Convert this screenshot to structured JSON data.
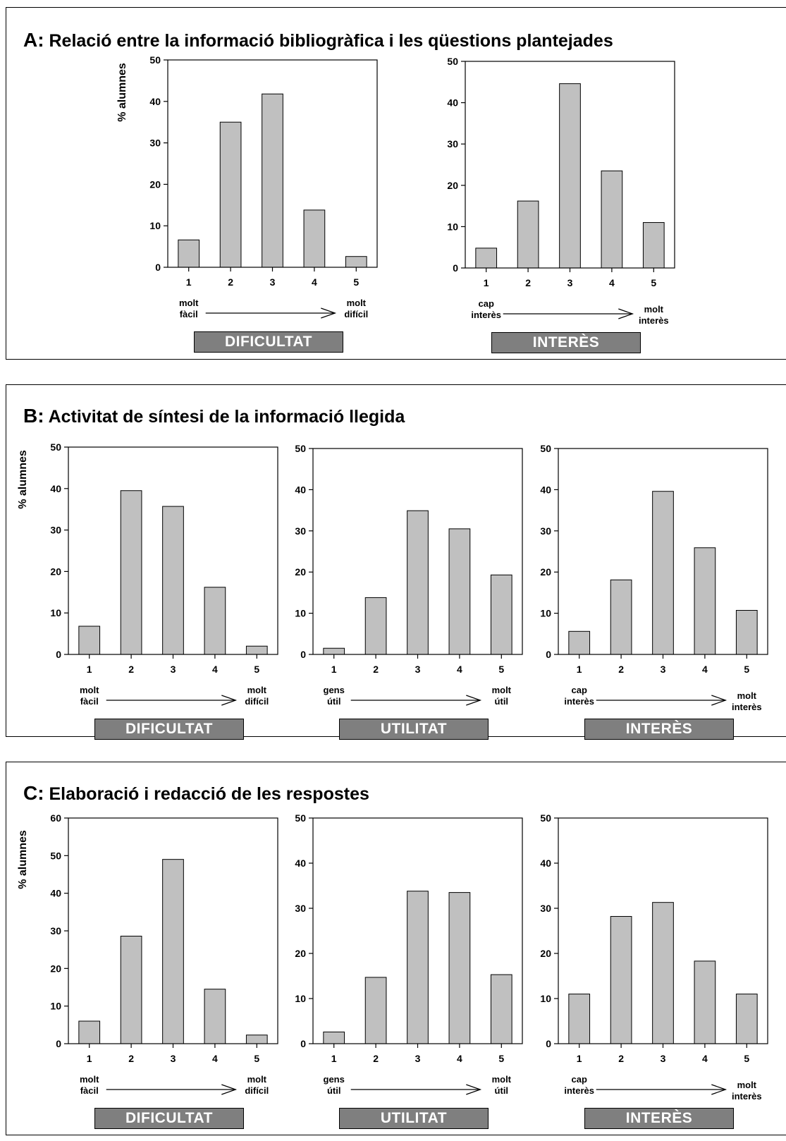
{
  "panels": [
    {
      "id": "A",
      "letter": "A:",
      "title": "Relació entre la informació bibliogràfica i les qüestions plantejades",
      "charts": [
        {
          "chart_data": {
            "type": "bar",
            "categories": [
              "1",
              "2",
              "3",
              "4",
              "5"
            ],
            "values": [
              6.6,
              35,
              41.8,
              13.8,
              2.6
            ],
            "ylim": [
              0,
              50
            ],
            "yticks": [
              0,
              10,
              20,
              30,
              40,
              50
            ],
            "ylabel": "% alumnes",
            "scale_left": "molt\nfàcil",
            "scale_right": "molt\ndifícil",
            "category": "DIFICULTAT"
          }
        },
        {
          "chart_data": {
            "type": "bar",
            "categories": [
              "1",
              "2",
              "3",
              "4",
              "5"
            ],
            "values": [
              4.8,
              16.2,
              44.6,
              23.5,
              11
            ],
            "ylim": [
              0,
              50
            ],
            "yticks": [
              0,
              10,
              20,
              30,
              40,
              50
            ],
            "ylabel": "",
            "scale_left": "cap\ninterès",
            "scale_right": "molt\ninterès",
            "category": "INTERÈS"
          }
        }
      ]
    },
    {
      "id": "B",
      "letter": "B:",
      "title": "Activitat de síntesi de la informació llegida",
      "charts": [
        {
          "chart_data": {
            "type": "bar",
            "categories": [
              "1",
              "2",
              "3",
              "4",
              "5"
            ],
            "values": [
              6.8,
              39.5,
              35.7,
              16.2,
              2
            ],
            "ylim": [
              0,
              50
            ],
            "yticks": [
              0,
              10,
              20,
              30,
              40,
              50
            ],
            "ylabel": "% alumnes",
            "scale_left": "molt\nfàcil",
            "scale_right": "molt\ndifícil",
            "category": "DIFICULTAT"
          }
        },
        {
          "chart_data": {
            "type": "bar",
            "categories": [
              "1",
              "2",
              "3",
              "4",
              "5"
            ],
            "values": [
              1.5,
              13.8,
              34.9,
              30.5,
              19.3
            ],
            "ylim": [
              0,
              50
            ],
            "yticks": [
              0,
              10,
              20,
              30,
              40,
              50
            ],
            "ylabel": "",
            "scale_left": "gens\nútil",
            "scale_right": "molt\nútil",
            "category": "UTILITAT"
          }
        },
        {
          "chart_data": {
            "type": "bar",
            "categories": [
              "1",
              "2",
              "3",
              "4",
              "5"
            ],
            "values": [
              5.6,
              18.1,
              39.6,
              25.9,
              10.7
            ],
            "ylim": [
              0,
              50
            ],
            "yticks": [
              0,
              10,
              20,
              30,
              40,
              50
            ],
            "ylabel": "",
            "scale_left": "cap\ninterès",
            "scale_right": "molt\ninterès",
            "category": "INTERÈS"
          }
        }
      ]
    },
    {
      "id": "C",
      "letter": "C:",
      "title": "Elaboració i redacció de les respostes",
      "charts": [
        {
          "chart_data": {
            "type": "bar",
            "categories": [
              "1",
              "2",
              "3",
              "4",
              "5"
            ],
            "values": [
              6,
              28.6,
              49,
              14.5,
              2.3
            ],
            "ylim": [
              0,
              60
            ],
            "yticks": [
              0,
              10,
              20,
              30,
              40,
              50,
              60
            ],
            "ylabel": "% alumnes",
            "scale_left": "molt\nfàcil",
            "scale_right": "molt\ndifícil",
            "category": "DIFICULTAT"
          }
        },
        {
          "chart_data": {
            "type": "bar",
            "categories": [
              "1",
              "2",
              "3",
              "4",
              "5"
            ],
            "values": [
              2.6,
              14.7,
              33.8,
              33.5,
              15.3
            ],
            "ylim": [
              0,
              50
            ],
            "yticks": [
              0,
              10,
              20,
              30,
              40,
              50
            ],
            "ylabel": "",
            "scale_left": "gens\nútil",
            "scale_right": "molt\nútil",
            "category": "UTILITAT"
          }
        },
        {
          "chart_data": {
            "type": "bar",
            "categories": [
              "1",
              "2",
              "3",
              "4",
              "5"
            ],
            "values": [
              11,
              28.2,
              31.3,
              18.3,
              11
            ],
            "ylim": [
              0,
              50
            ],
            "yticks": [
              0,
              10,
              20,
              30,
              40,
              50
            ],
            "ylabel": "",
            "scale_left": "cap\ninterès",
            "scale_right": "molt\ninterès",
            "category": "INTERÈS"
          }
        }
      ]
    }
  ]
}
